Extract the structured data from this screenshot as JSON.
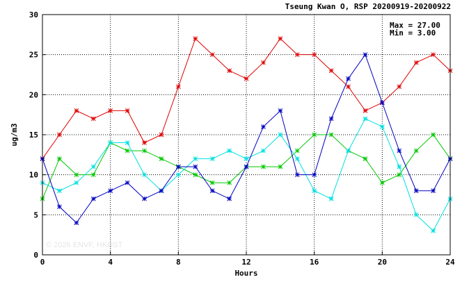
{
  "chart_data": {
    "type": "line",
    "title": "Tseung Kwan O, RSP 20200919-20200922",
    "xlabel": "Hours",
    "ylabel": "ug/m3",
    "xlim": [
      0,
      24
    ],
    "ylim": [
      0,
      30
    ],
    "x_ticks": [
      0,
      4,
      8,
      12,
      16,
      20,
      24
    ],
    "y_ticks": [
      0,
      5,
      10,
      15,
      20,
      25,
      30
    ],
    "grid": true,
    "stats": {
      "max": "Max = 27.00",
      "min": "Min =  3.00"
    },
    "watermark": "© 2026  ENVF, HKUST",
    "x": [
      0,
      1,
      2,
      3,
      4,
      5,
      6,
      7,
      8,
      9,
      10,
      11,
      12,
      13,
      14,
      15,
      16,
      17,
      18,
      19,
      20,
      21,
      22,
      23,
      24
    ],
    "series": [
      {
        "color": "#e00000",
        "values": [
          12,
          15,
          18,
          17,
          18,
          18,
          14,
          15,
          21,
          27,
          25,
          23,
          22,
          24,
          27,
          25,
          25,
          23,
          21,
          18,
          19,
          21,
          24,
          25,
          23
        ]
      },
      {
        "color": "#00c800",
        "values": [
          7,
          12,
          10,
          10,
          14,
          13,
          13,
          12,
          11,
          10,
          9,
          9,
          11,
          11,
          11,
          13,
          15,
          15,
          13,
          12,
          9,
          10,
          13,
          15,
          12
        ]
      },
      {
        "color": "#00e0e0",
        "values": [
          9,
          8,
          9,
          11,
          14,
          14,
          10,
          8,
          10,
          12,
          12,
          13,
          12,
          13,
          15,
          12,
          8,
          7,
          13,
          17,
          16,
          11,
          5,
          3,
          7
        ]
      },
      {
        "color": "#0000c0",
        "values": [
          12,
          6,
          4,
          7,
          8,
          9,
          7,
          8,
          11,
          11,
          8,
          7,
          11,
          16,
          18,
          10,
          10,
          17,
          22,
          25,
          19,
          13,
          8,
          8,
          12
        ]
      }
    ]
  }
}
